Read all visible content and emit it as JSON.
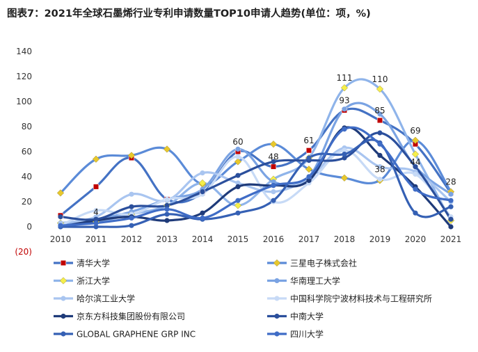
{
  "title": "图表7：2021年全球石墨烯行业专利申请数量TOP10申请人趋势(单位：项，%)",
  "chart_data": {
    "type": "line",
    "smooth": true,
    "title": "图表7：2021年全球石墨烯行业专利申请数量TOP10申请人趋势(单位：项，%)",
    "xlabel": "",
    "ylabel": "",
    "categories": [
      "2010",
      "2011",
      "2012",
      "2013",
      "2014",
      "2015",
      "2016",
      "2017",
      "2018",
      "2019",
      "2020",
      "2021"
    ],
    "y_ticks": [
      140,
      120,
      100,
      80,
      60,
      40,
      20,
      0,
      -20
    ],
    "y_tick_labels": [
      "140",
      "120",
      "100",
      "80",
      "60",
      "40",
      "20",
      "0",
      "(20)"
    ],
    "ylim": [
      -20,
      140
    ],
    "grid": false,
    "legend_position": "bottom",
    "series": [
      {
        "name": "清华大学",
        "color": "#4472c4",
        "marker": "square",
        "marker_color": "#c00000",
        "values": [
          9,
          32,
          55,
          22,
          27,
          60,
          48,
          61,
          93,
          85,
          66,
          27
        ],
        "labels": [
          null,
          null,
          null,
          null,
          null,
          "60",
          "48",
          "61",
          "93",
          "85",
          null,
          null
        ]
      },
      {
        "name": "三星电子株式会社",
        "color": "#5b8bd8",
        "marker": "diamond",
        "marker_color": "#e8c82c",
        "values": [
          27,
          54,
          57,
          62,
          34,
          52,
          66,
          46,
          39,
          37,
          69,
          28
        ],
        "labels": [
          null,
          null,
          null,
          null,
          null,
          null,
          null,
          null,
          null,
          null,
          "69",
          "28"
        ]
      },
      {
        "name": "浙江大学",
        "color": "#8fb4ea",
        "marker": "diamond",
        "marker_color": "#f5ef4a",
        "values": [
          3,
          4,
          10,
          17,
          35,
          17,
          38,
          55,
          111,
          110,
          58,
          5
        ],
        "labels": [
          null,
          "4",
          null,
          null,
          null,
          null,
          null,
          null,
          "111",
          "110",
          null,
          null
        ]
      },
      {
        "name": "华南理工大学",
        "color": "#7aa3e3",
        "marker": "circle",
        "marker_color": "#7aa3e3",
        "values": [
          2,
          6,
          12,
          22,
          30,
          62,
          36,
          40,
          94,
          90,
          48,
          26
        ],
        "labels": [
          null,
          null,
          null,
          null,
          null,
          null,
          null,
          null,
          null,
          null,
          null,
          null
        ]
      },
      {
        "name": "哈尔滨工业大学",
        "color": "#a9c5f0",
        "marker": "circle",
        "marker_color": "#a9c5f0",
        "values": [
          3,
          8,
          26,
          21,
          43,
          35,
          28,
          39,
          63,
          48,
          44,
          20
        ],
        "labels": [
          null,
          null,
          null,
          null,
          null,
          null,
          null,
          null,
          null,
          null,
          "44",
          null
        ]
      },
      {
        "name": "中国科学院宁波材料技术与工程研究所",
        "color": "#c7daf6",
        "marker": "circle",
        "marker_color": "#c7daf6",
        "values": [
          1,
          13,
          10,
          22,
          26,
          56,
          20,
          35,
          61,
          38,
          42,
          8
        ],
        "labels": [
          null,
          null,
          null,
          null,
          null,
          null,
          null,
          null,
          null,
          "38",
          null,
          null
        ]
      },
      {
        "name": "京东方科技集团股份有限公司",
        "color": "#1f3b7a",
        "marker": "circle",
        "marker_color": "#1f3b7a",
        "values": [
          0,
          5,
          8,
          5,
          11,
          32,
          33,
          37,
          79,
          57,
          32,
          0
        ],
        "labels": [
          null,
          null,
          null,
          null,
          null,
          null,
          null,
          null,
          null,
          null,
          null,
          null
        ]
      },
      {
        "name": "中南大学",
        "color": "#2b4f9c",
        "marker": "circle",
        "marker_color": "#2b4f9c",
        "values": [
          8,
          6,
          16,
          17,
          28,
          41,
          52,
          53,
          55,
          75,
          48,
          6
        ],
        "labels": [
          null,
          null,
          null,
          null,
          null,
          null,
          null,
          null,
          null,
          null,
          null,
          null
        ]
      },
      {
        "name": "GLOBAL GRAPHENE GRP INC",
        "color": "#3560b4",
        "marker": "circle",
        "marker_color": "#3560b4",
        "values": [
          0,
          0,
          1,
          10,
          6,
          11,
          21,
          55,
          58,
          67,
          11,
          16
        ],
        "labels": [
          null,
          null,
          null,
          null,
          null,
          null,
          null,
          null,
          null,
          null,
          null,
          null
        ]
      },
      {
        "name": "四川大学",
        "color": "#3f6cc6",
        "marker": "circle",
        "marker_color": "#3f6cc6",
        "values": [
          1,
          3,
          7,
          14,
          7,
          21,
          33,
          40,
          78,
          66,
          30,
          21
        ],
        "labels": [
          null,
          null,
          null,
          null,
          null,
          null,
          null,
          null,
          null,
          null,
          null,
          null
        ]
      }
    ]
  }
}
